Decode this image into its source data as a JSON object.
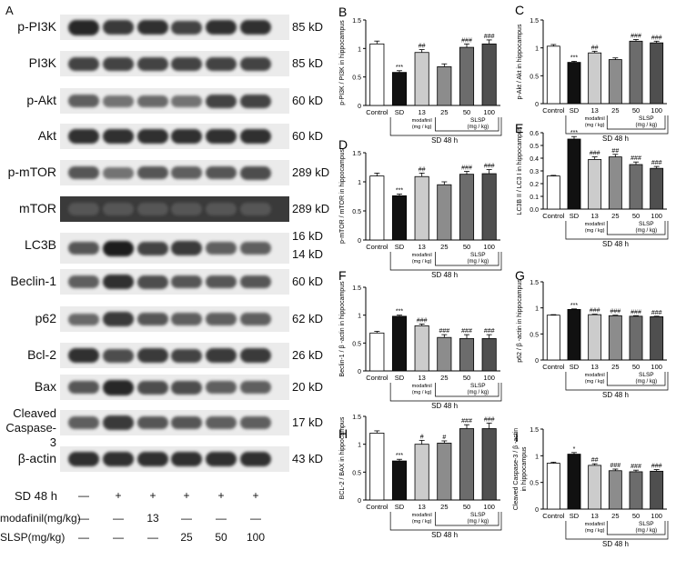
{
  "panel_a": {
    "letter": "A",
    "blots": [
      {
        "label": "p-PI3K",
        "kd": [
          "85 kD"
        ],
        "intensity": [
          0.85,
          0.75,
          0.8,
          0.7,
          0.8,
          0.8
        ]
      },
      {
        "label": "PI3K",
        "kd": [
          "85 kD"
        ],
        "intensity": [
          0.7,
          0.7,
          0.7,
          0.7,
          0.7,
          0.7
        ]
      },
      {
        "label": "p-Akt",
        "kd": [
          "60 kD"
        ],
        "intensity": [
          0.55,
          0.45,
          0.5,
          0.45,
          0.7,
          0.7
        ]
      },
      {
        "label": "Akt",
        "kd": [
          "60 kD"
        ],
        "intensity": [
          0.8,
          0.8,
          0.8,
          0.8,
          0.8,
          0.8
        ]
      },
      {
        "label": "p-mTOR",
        "kd": [
          "289 kD"
        ],
        "intensity": [
          0.6,
          0.45,
          0.6,
          0.55,
          0.6,
          0.65
        ]
      },
      {
        "label": "mTOR",
        "kd": [
          "289 kD"
        ],
        "intensity": [
          0.6,
          0.6,
          0.6,
          0.6,
          0.6,
          0.6
        ]
      },
      {
        "label": "LC3B",
        "kd": [
          "16 kD",
          "14 kD"
        ],
        "intensity": [
          0.6,
          0.9,
          0.7,
          0.75,
          0.55,
          0.55
        ]
      },
      {
        "label": "Beclin-1",
        "kd": [
          "60 kD"
        ],
        "intensity": [
          0.55,
          0.8,
          0.65,
          0.6,
          0.6,
          0.6
        ]
      },
      {
        "label": "p62",
        "kd": [
          "62 kD"
        ],
        "intensity": [
          0.5,
          0.75,
          0.6,
          0.55,
          0.55,
          0.55
        ]
      },
      {
        "label": "Bcl-2",
        "kd": [
          "26 kD"
        ],
        "intensity": [
          0.8,
          0.65,
          0.75,
          0.7,
          0.75,
          0.75
        ]
      },
      {
        "label": "Bax",
        "kd": [
          "20 kD"
        ],
        "intensity": [
          0.6,
          0.85,
          0.65,
          0.65,
          0.55,
          0.55
        ]
      },
      {
        "label": "Cleaved\nCaspase-3",
        "kd": [
          "17 kD"
        ],
        "intensity": [
          0.55,
          0.75,
          0.6,
          0.6,
          0.55,
          0.55
        ]
      },
      {
        "label": "β-actin",
        "kd": [
          "43 kD"
        ],
        "intensity": [
          0.8,
          0.8,
          0.8,
          0.8,
          0.8,
          0.8
        ]
      }
    ],
    "conditions": [
      {
        "label": "SD 48 h",
        "values": [
          "—",
          "+",
          "+",
          "+",
          "+",
          "+"
        ]
      },
      {
        "label": "modafinil(mg/kg)",
        "values": [
          "—",
          "—",
          "13",
          "—",
          "—",
          "—"
        ]
      },
      {
        "label": "SLSP(mg/kg)",
        "values": [
          "—",
          "—",
          "—",
          "25",
          "50",
          "100"
        ]
      }
    ]
  },
  "group_labels": {
    "categories": [
      "Control",
      "SD",
      "13",
      "25",
      "50",
      "100"
    ],
    "modafinil": "modafinil",
    "modafinil_unit": "(mg / kg)",
    "slsp": "SLSP",
    "slsp_unit": "(mg / kg)",
    "sd": "SD 48 h"
  },
  "colors": {
    "Control": "#ffffff",
    "SD": "#111111",
    "13": "#cccccc",
    "25": "#8c8c8c",
    "50": "#6c6c6c",
    "100": "#4f4f4f"
  },
  "chart_data": [
    {
      "letter": "B",
      "type": "bar",
      "ylabel": "p-PI3K / PI3K  in hippocampus",
      "ylim": [
        0,
        1.5
      ],
      "ticks": [
        0,
        0.5,
        1.0,
        1.5
      ],
      "categories": [
        "Control",
        "SD",
        "13",
        "25",
        "50",
        "100"
      ],
      "values": [
        1.08,
        0.58,
        0.93,
        0.68,
        1.02,
        1.08
      ],
      "errors": [
        0.05,
        0.03,
        0.05,
        0.05,
        0.06,
        0.07
      ],
      "sig": [
        "",
        "***",
        "##",
        "",
        "###",
        "###"
      ]
    },
    {
      "letter": "C",
      "type": "bar",
      "ylabel": "p-Akt / Akt in hippocampus",
      "ylim": [
        0,
        1.5
      ],
      "ticks": [
        0,
        0.5,
        1.0,
        1.5
      ],
      "categories": [
        "Control",
        "SD",
        "13",
        "25",
        "50",
        "100"
      ],
      "values": [
        1.03,
        0.74,
        0.91,
        0.79,
        1.12,
        1.09
      ],
      "errors": [
        0.03,
        0.02,
        0.03,
        0.03,
        0.03,
        0.03
      ],
      "sig": [
        "",
        "***",
        "##",
        "",
        "###",
        "###"
      ]
    },
    {
      "letter": "D",
      "type": "bar",
      "ylabel": "p-mTOR / mTOR in hippocampus",
      "ylim": [
        0,
        1.5
      ],
      "ticks": [
        0,
        0.5,
        1.0,
        1.5
      ],
      "categories": [
        "Control",
        "SD",
        "13",
        "25",
        "50",
        "100"
      ],
      "values": [
        1.1,
        0.76,
        1.09,
        0.95,
        1.13,
        1.14
      ],
      "errors": [
        0.05,
        0.03,
        0.06,
        0.05,
        0.05,
        0.07
      ],
      "sig": [
        "",
        "***",
        "##",
        "",
        "###",
        "###"
      ]
    },
    {
      "letter": "E",
      "type": "bar",
      "ylabel": "LC3B II / LC3 I in hippocampus",
      "ylim": [
        0,
        0.6
      ],
      "ticks": [
        0,
        0.1,
        0.2,
        0.3,
        0.4,
        0.5,
        0.6
      ],
      "categories": [
        "Control",
        "SD",
        "13",
        "25",
        "50",
        "100"
      ],
      "values": [
        0.26,
        0.55,
        0.39,
        0.41,
        0.35,
        0.32
      ],
      "errors": [
        0.005,
        0.02,
        0.02,
        0.02,
        0.02,
        0.015
      ],
      "sig": [
        "",
        "***",
        "###",
        "##",
        "###",
        "###"
      ]
    },
    {
      "letter": "F",
      "type": "bar",
      "ylabel": "Beclin-1 / β -actin  in hippocampus",
      "ylim": [
        0,
        1.5
      ],
      "ticks": [
        0,
        0.5,
        1.0,
        1.5
      ],
      "categories": [
        "Control",
        "SD",
        "13",
        "25",
        "50",
        "100"
      ],
      "values": [
        0.68,
        0.98,
        0.81,
        0.6,
        0.58,
        0.58
      ],
      "errors": [
        0.03,
        0.02,
        0.03,
        0.05,
        0.07,
        0.07
      ],
      "sig": [
        "",
        "***",
        "###",
        "###",
        "###",
        "###"
      ]
    },
    {
      "letter": "G",
      "type": "bar",
      "ylabel": "p62 / β -actin  in hippocampus",
      "ylim": [
        0,
        1.5
      ],
      "ticks": [
        0,
        0.5,
        1.0,
        1.5
      ],
      "categories": [
        "Control",
        "SD",
        "13",
        "25",
        "50",
        "100"
      ],
      "values": [
        0.86,
        0.97,
        0.87,
        0.85,
        0.84,
        0.83
      ],
      "errors": [
        0.01,
        0.01,
        0.01,
        0.01,
        0.01,
        0.01
      ],
      "sig": [
        "",
        "***",
        "###",
        "###",
        "###",
        "###"
      ]
    },
    {
      "letter": "H",
      "type": "bar",
      "ylabel": "BCL-2 / BAX in hippocampus",
      "ylim": [
        0,
        1.5
      ],
      "ticks": [
        0,
        0.5,
        1.0,
        1.5
      ],
      "categories": [
        "Control",
        "SD",
        "13",
        "25",
        "50",
        "100"
      ],
      "values": [
        1.2,
        0.7,
        1.0,
        1.02,
        1.28,
        1.28
      ],
      "errors": [
        0.04,
        0.03,
        0.07,
        0.04,
        0.07,
        0.1
      ],
      "sig": [
        "",
        "***",
        "#",
        "#",
        "###",
        "###"
      ]
    },
    {
      "letter": "I",
      "type": "bar",
      "ylabel": "Cleaved Caspase-3 / β -actin\nin hippocampus",
      "ylim": [
        0,
        1.5
      ],
      "ticks": [
        0,
        0.5,
        1.0,
        1.5
      ],
      "categories": [
        "Control",
        "SD",
        "13",
        "25",
        "50",
        "100"
      ],
      "values": [
        0.86,
        1.03,
        0.82,
        0.72,
        0.7,
        0.71
      ],
      "errors": [
        0.02,
        0.03,
        0.03,
        0.03,
        0.03,
        0.03
      ],
      "sig": [
        "",
        "*",
        "##",
        "###",
        "###",
        "###"
      ]
    }
  ]
}
